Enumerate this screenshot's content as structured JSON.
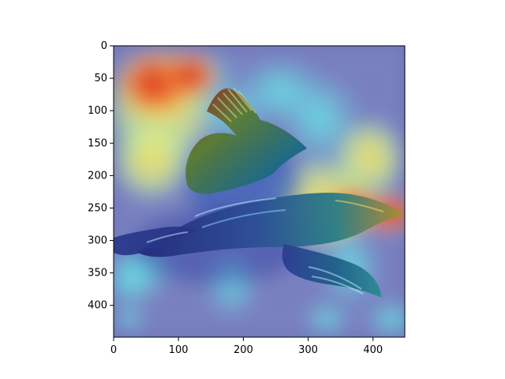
{
  "figure": {
    "description_visible": false,
    "x_ticks": [
      0,
      100,
      200,
      300,
      400
    ],
    "y_ticks": [
      0,
      50,
      100,
      150,
      200,
      250,
      300,
      350,
      400
    ],
    "x_range": [
      0,
      449
    ],
    "y_range": [
      0,
      449
    ],
    "y_axis_inverted": true,
    "colormap": "jet",
    "overlay": "heatmap",
    "subject": "bird-in-flight"
  }
}
